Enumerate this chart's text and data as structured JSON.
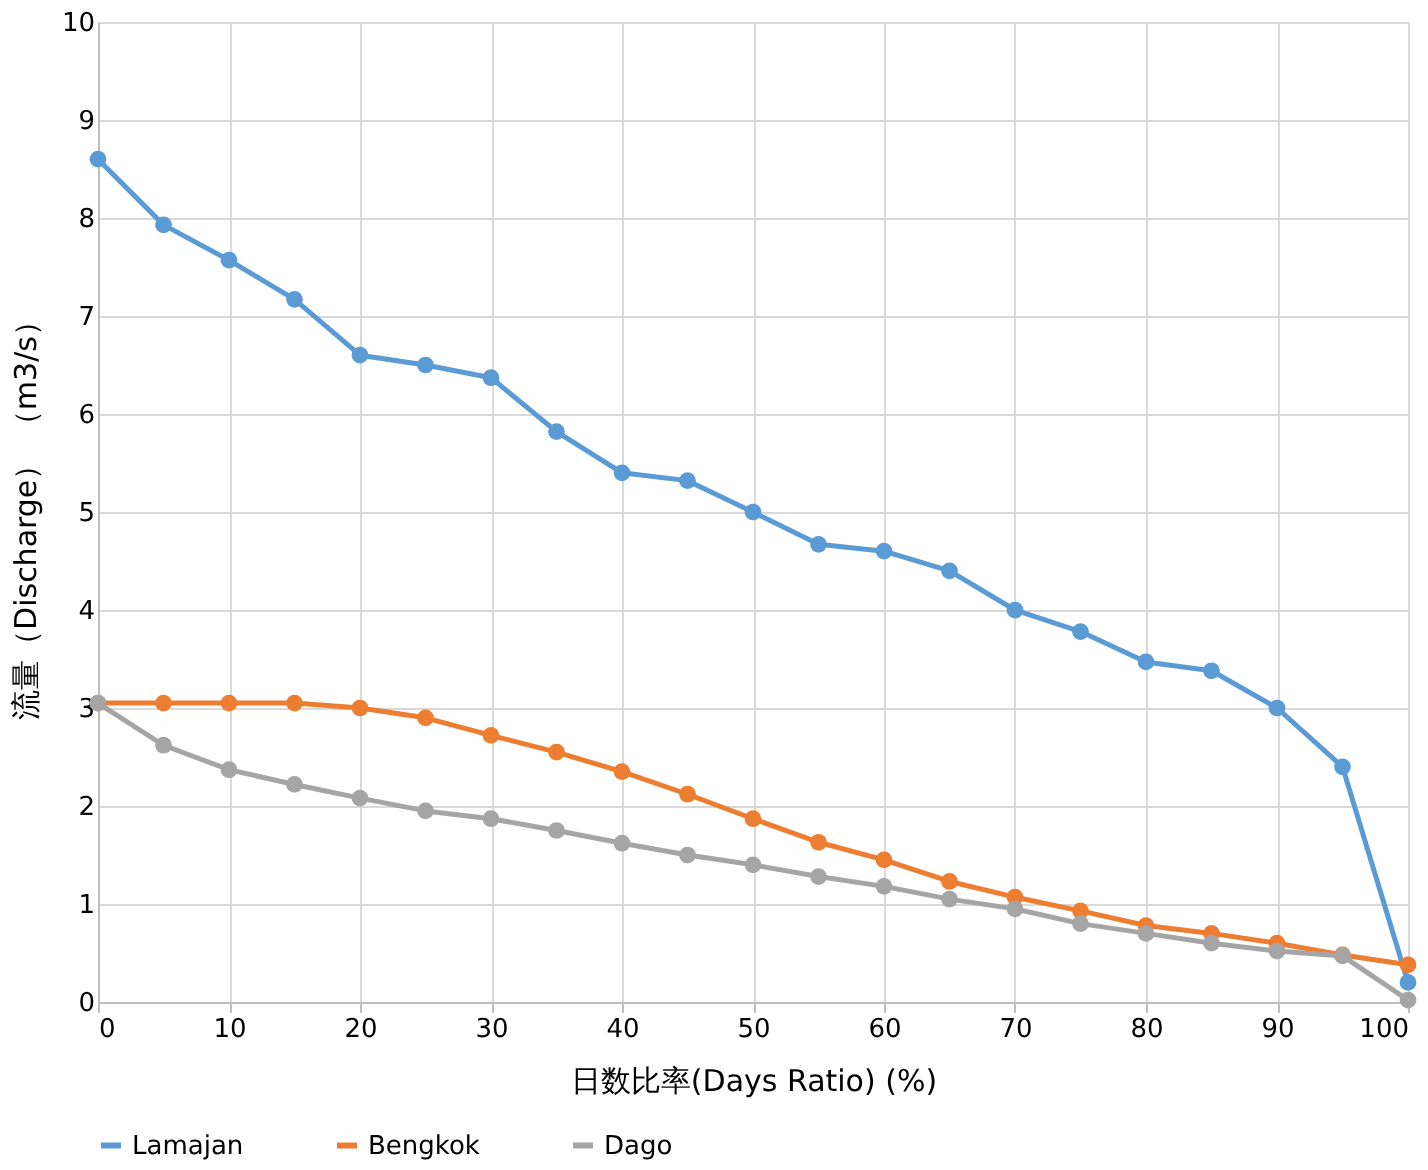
{
  "chart_data": {
    "type": "line",
    "xlabel": "日数比率(Days Ratio)            (%)",
    "ylabel": "流量（Discharge）  （m3/s）",
    "x": [
      0,
      5,
      10,
      15,
      20,
      25,
      30,
      35,
      40,
      45,
      50,
      55,
      60,
      65,
      70,
      75,
      80,
      85,
      90,
      95,
      100
    ],
    "series": [
      {
        "name": "Lamajan",
        "color": "#5b9bd5",
        "values": [
          8.6,
          7.93,
          7.57,
          7.17,
          6.6,
          6.5,
          6.37,
          5.82,
          5.4,
          5.32,
          5.0,
          4.67,
          4.6,
          4.4,
          4.0,
          3.78,
          3.47,
          3.38,
          3.0,
          2.4,
          0.2
        ]
      },
      {
        "name": "Bengkok",
        "color": "#ed7d31",
        "values": [
          3.05,
          3.05,
          3.05,
          3.05,
          3.0,
          2.9,
          2.72,
          2.55,
          2.35,
          2.12,
          1.87,
          1.63,
          1.45,
          1.23,
          1.07,
          0.93,
          0.78,
          0.7,
          0.6,
          0.48,
          0.38
        ]
      },
      {
        "name": "Dago",
        "color": "#a5a5a5",
        "values": [
          3.05,
          2.62,
          2.37,
          2.22,
          2.08,
          1.95,
          1.87,
          1.75,
          1.62,
          1.5,
          1.4,
          1.28,
          1.18,
          1.05,
          0.95,
          0.8,
          0.7,
          0.6,
          0.52,
          0.47,
          0.02
        ]
      }
    ],
    "xlim": [
      0,
      100
    ],
    "xticks": [
      0,
      10,
      20,
      30,
      40,
      50,
      60,
      70,
      80,
      90,
      100
    ],
    "ylim": [
      0,
      10
    ],
    "yticks": [
      0,
      1,
      2,
      3,
      4,
      5,
      6,
      7,
      8,
      9,
      10
    ],
    "grid": true,
    "legend": "bottom",
    "marker": "circle",
    "line_style": "solid"
  }
}
